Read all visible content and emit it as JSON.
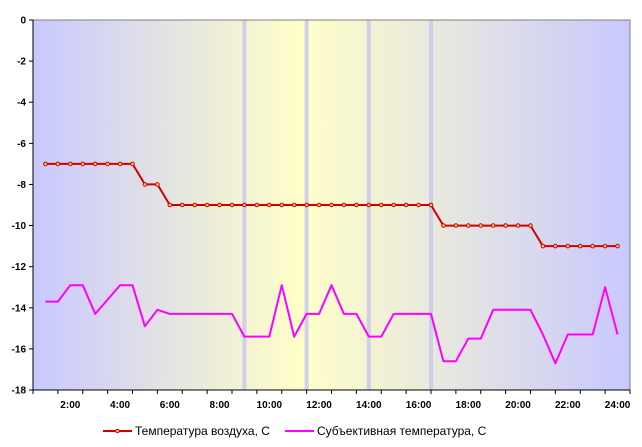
{
  "chart_data": {
    "type": "line",
    "title": "",
    "xlabel": "",
    "ylabel": "",
    "ylim": [
      -18,
      0
    ],
    "ytick_values": [
      0,
      -2,
      -4,
      -6,
      -8,
      -10,
      -12,
      -14,
      -16,
      -18
    ],
    "ytick_labels": [
      "0",
      "-2",
      "-4",
      "-6",
      "-8",
      "-10",
      "-12",
      "-14",
      "-16",
      "-18"
    ],
    "xlim": [
      0.5,
      24.5
    ],
    "xtick_values": [
      2,
      4,
      6,
      8,
      10,
      12,
      14,
      16,
      18,
      20,
      22,
      24
    ],
    "xtick_labels": [
      "2:00",
      "4:00",
      "6:00",
      "8:00",
      "10:00",
      "12:00",
      "14:00",
      "16:00",
      "18:00",
      "20:00",
      "22:00",
      "24:00"
    ],
    "background_colors": {
      "night": "#c8c8ff",
      "day": "#ffffc8"
    },
    "vertical_bands_x": [
      9,
      11.5,
      14,
      16.5
    ],
    "grid": false,
    "legend_placement": "bottom",
    "series": [
      {
        "name": "Температура воздуха, С",
        "color": "#cc0000",
        "marker": "circle",
        "x": [
          1,
          1.5,
          2,
          2.5,
          3,
          3.5,
          4,
          4.5,
          5,
          5.5,
          6,
          6.5,
          7,
          7.5,
          8,
          8.5,
          9,
          9.5,
          10,
          10.5,
          11,
          11.5,
          12,
          12.5,
          13,
          13.5,
          14,
          14.5,
          15,
          15.5,
          16,
          16.5,
          17,
          17.5,
          18,
          18.5,
          19,
          19.5,
          20,
          20.5,
          21,
          21.5,
          22,
          22.5,
          23,
          23.5,
          24
        ],
        "values": [
          -7,
          -7,
          -7,
          -7,
          -7,
          -7,
          -7,
          -7,
          -8,
          -8,
          -9,
          -9,
          -9,
          -9,
          -9,
          -9,
          -9,
          -9,
          -9,
          -9,
          -9,
          -9,
          -9,
          -9,
          -9,
          -9,
          -9,
          -9,
          -9,
          -9,
          -9,
          -9,
          -10,
          -10,
          -10,
          -10,
          -10,
          -10,
          -10,
          -10,
          -11,
          -11,
          -11,
          -11,
          -11,
          -11,
          -11
        ]
      },
      {
        "name": "Субъективная температура, С",
        "color": "#ff00ff",
        "marker": "none",
        "x": [
          1,
          1.5,
          2,
          2.5,
          3,
          3.5,
          4,
          4.5,
          5,
          5.5,
          6,
          6.5,
          7,
          7.5,
          8,
          8.5,
          9,
          9.5,
          10,
          10.5,
          11,
          11.5,
          12,
          12.5,
          13,
          13.5,
          14,
          14.5,
          15,
          15.5,
          16,
          16.5,
          17,
          17.5,
          18,
          18.5,
          19,
          19.5,
          20,
          20.5,
          21,
          21.5,
          22,
          22.5,
          23,
          23.5,
          24
        ],
        "values": [
          -13.7,
          -13.7,
          -12.9,
          -12.9,
          -14.3,
          -13.6,
          -12.9,
          -12.9,
          -14.9,
          -14.1,
          -14.3,
          -14.3,
          -14.3,
          -14.3,
          -14.3,
          -14.3,
          -15.4,
          -15.4,
          -15.4,
          -12.9,
          -15.4,
          -14.3,
          -14.3,
          -12.9,
          -14.3,
          -14.3,
          -15.4,
          -15.4,
          -14.3,
          -14.3,
          -14.3,
          -14.3,
          -16.6,
          -16.6,
          -15.5,
          -15.5,
          -14.1,
          -14.1,
          -14.1,
          -14.1,
          -15.3,
          -16.7,
          -15.3,
          -15.3,
          -15.3,
          -13,
          -15.3
        ]
      }
    ]
  }
}
